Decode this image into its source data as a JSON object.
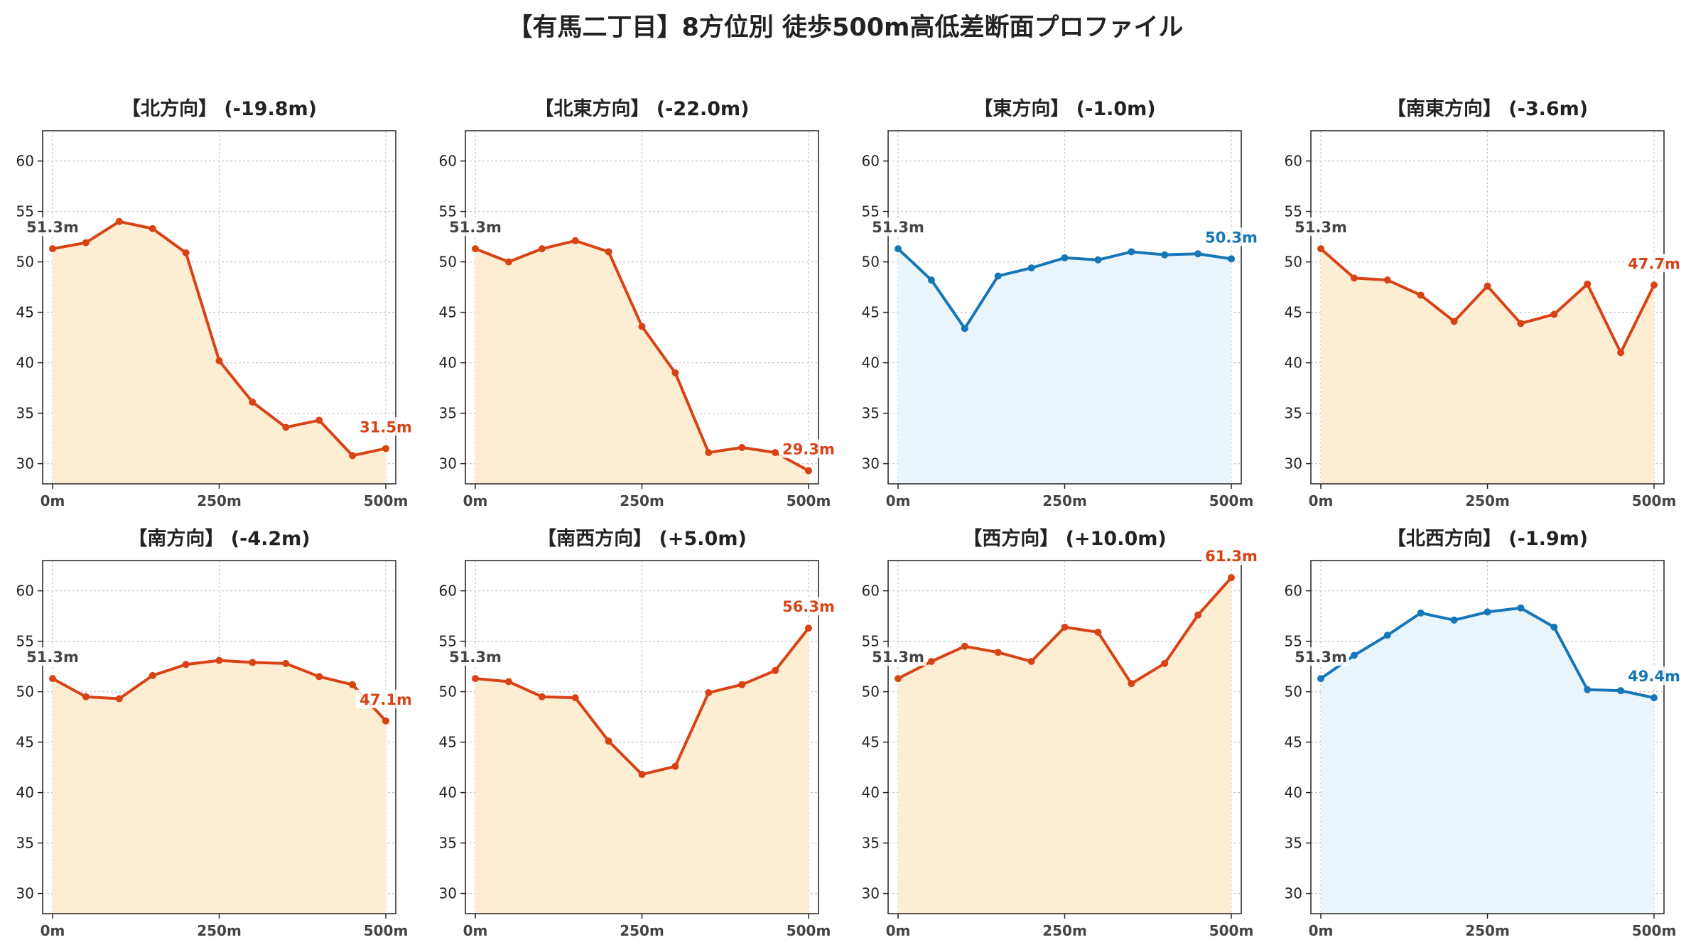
{
  "suptitle": "【有馬二丁目】8方位別 徒歩500m高低差断面プロファイル",
  "colors": {
    "down": "#D84315",
    "up": "#1577B8",
    "fill_warm": "#FDEDD3",
    "fill_cool": "#E9F5FB",
    "start_label": "#444444"
  },
  "chart_data": [
    {
      "type": "line",
      "title": "【北方向】 (-19.8m)",
      "x": [
        0,
        50,
        100,
        150,
        200,
        250,
        300,
        350,
        400,
        450,
        500
      ],
      "values": [
        51.3,
        51.9,
        54.0,
        53.3,
        50.9,
        40.2,
        36.1,
        33.6,
        34.3,
        30.8,
        31.5
      ],
      "start_label": "51.3m",
      "end_label": "31.5m",
      "style": "warm",
      "xticks": [
        "0m",
        "250m",
        "500m"
      ],
      "ylim": [
        28,
        63
      ],
      "yticks": [
        30,
        35,
        40,
        45,
        50,
        55,
        60
      ],
      "grid": true
    },
    {
      "type": "line",
      "title": "【北東方向】 (-22.0m)",
      "x": [
        0,
        50,
        100,
        150,
        200,
        250,
        300,
        350,
        400,
        450,
        500
      ],
      "values": [
        51.3,
        50.0,
        51.3,
        52.1,
        51.0,
        43.6,
        39.0,
        31.1,
        31.6,
        31.1,
        29.3
      ],
      "start_label": "51.3m",
      "end_label": "29.3m",
      "style": "warm",
      "xticks": [
        "0m",
        "250m",
        "500m"
      ],
      "ylim": [
        28,
        63
      ],
      "yticks": [
        30,
        35,
        40,
        45,
        50,
        55,
        60
      ],
      "grid": true
    },
    {
      "type": "line",
      "title": "【東方向】 (-1.0m)",
      "x": [
        0,
        50,
        100,
        150,
        200,
        250,
        300,
        350,
        400,
        450,
        500
      ],
      "values": [
        51.3,
        48.2,
        43.4,
        48.6,
        49.4,
        50.4,
        50.2,
        51.0,
        50.7,
        50.8,
        50.3
      ],
      "start_label": "51.3m",
      "end_label": "50.3m",
      "style": "cool",
      "xticks": [
        "0m",
        "250m",
        "500m"
      ],
      "ylim": [
        28,
        63
      ],
      "yticks": [
        30,
        35,
        40,
        45,
        50,
        55,
        60
      ],
      "grid": true
    },
    {
      "type": "line",
      "title": "【南東方向】 (-3.6m)",
      "x": [
        0,
        50,
        100,
        150,
        200,
        250,
        300,
        350,
        400,
        450,
        500
      ],
      "values": [
        51.3,
        48.4,
        48.2,
        46.7,
        44.1,
        47.6,
        43.9,
        44.8,
        47.8,
        41.0,
        47.7
      ],
      "start_label": "51.3m",
      "end_label": "47.7m",
      "style": "warm",
      "xticks": [
        "0m",
        "250m",
        "500m"
      ],
      "ylim": [
        28,
        63
      ],
      "yticks": [
        30,
        35,
        40,
        45,
        50,
        55,
        60
      ],
      "grid": true
    },
    {
      "type": "line",
      "title": "【南方向】 (-4.2m)",
      "x": [
        0,
        50,
        100,
        150,
        200,
        250,
        300,
        350,
        400,
        450,
        500
      ],
      "values": [
        51.3,
        49.5,
        49.3,
        51.6,
        52.7,
        53.1,
        52.9,
        52.8,
        51.5,
        50.7,
        47.1
      ],
      "start_label": "51.3m",
      "end_label": "47.1m",
      "style": "warm",
      "xticks": [
        "0m",
        "250m",
        "500m"
      ],
      "ylim": [
        28,
        63
      ],
      "yticks": [
        30,
        35,
        40,
        45,
        50,
        55,
        60
      ],
      "grid": true
    },
    {
      "type": "line",
      "title": "【南西方向】 (+5.0m)",
      "x": [
        0,
        50,
        100,
        150,
        200,
        250,
        300,
        350,
        400,
        450,
        500
      ],
      "values": [
        51.3,
        51.0,
        49.5,
        49.4,
        45.1,
        41.8,
        42.6,
        49.9,
        50.7,
        52.1,
        56.3
      ],
      "start_label": "51.3m",
      "end_label": "56.3m",
      "style": "warm",
      "xticks": [
        "0m",
        "250m",
        "500m"
      ],
      "ylim": [
        28,
        63
      ],
      "yticks": [
        30,
        35,
        40,
        45,
        50,
        55,
        60
      ],
      "grid": true
    },
    {
      "type": "line",
      "title": "【西方向】 (+10.0m)",
      "x": [
        0,
        50,
        100,
        150,
        200,
        250,
        300,
        350,
        400,
        450,
        500
      ],
      "values": [
        51.3,
        53.0,
        54.5,
        53.9,
        53.0,
        56.4,
        55.9,
        50.8,
        52.8,
        57.6,
        61.3
      ],
      "start_label": "51.3m",
      "end_label": "61.3m",
      "style": "warm",
      "xticks": [
        "0m",
        "250m",
        "500m"
      ],
      "ylim": [
        28,
        63
      ],
      "yticks": [
        30,
        35,
        40,
        45,
        50,
        55,
        60
      ],
      "grid": true
    },
    {
      "type": "line",
      "title": "【北西方向】 (-1.9m)",
      "x": [
        0,
        50,
        100,
        150,
        200,
        250,
        300,
        350,
        400,
        450,
        500
      ],
      "values": [
        51.3,
        53.6,
        55.6,
        57.8,
        57.1,
        57.9,
        58.3,
        56.4,
        50.2,
        50.1,
        49.4
      ],
      "start_label": "51.3m",
      "end_label": "49.4m",
      "style": "cool",
      "xticks": [
        "0m",
        "250m",
        "500m"
      ],
      "ylim": [
        28,
        63
      ],
      "yticks": [
        30,
        35,
        40,
        45,
        50,
        55,
        60
      ],
      "grid": true
    }
  ]
}
